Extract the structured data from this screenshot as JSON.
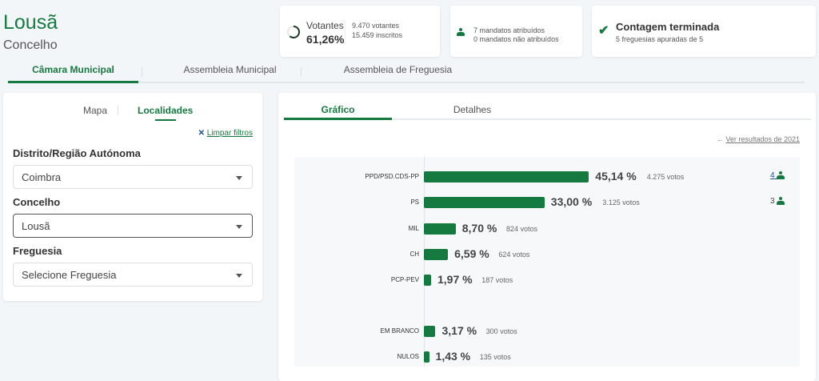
{
  "header": {
    "title": "Lousã",
    "subtitle": "Concelho"
  },
  "stats": {
    "votantes_label": "Votantes",
    "votantes_pct": "61,26%",
    "votantes_progress": 61.26,
    "votantes": "9.470 votantes",
    "inscritos": "15.459 inscritos",
    "mandatos_atribuidos": "7 mandatos atribuídos",
    "mandatos_nao_atribuidos": "0 mandatos não atribuídos",
    "contagem_title": "Contagem terminada",
    "contagem_sub": "5 freguesias apuradas de 5"
  },
  "tabs": [
    {
      "label": "Câmara Municipal",
      "active": true
    },
    {
      "label": "Assembleia Municipal"
    },
    {
      "label": "Assembleia de Freguesia"
    }
  ],
  "filters": {
    "tabs": [
      {
        "label": "Mapa"
      },
      {
        "label": "Localidades",
        "active": true
      }
    ],
    "clear": "Limpar filtros",
    "distrito_label": "Distrito/Região Autónoma",
    "distrito_value": "Coimbra",
    "concelho_label": "Concelho",
    "concelho_value": "Lousã",
    "freguesia_label": "Freguesia",
    "freguesia_placeholder": "Selecione Freguesia"
  },
  "results": {
    "tabs": [
      {
        "label": "Gráfico",
        "active": true
      },
      {
        "label": "Detalhes"
      }
    ],
    "previous_link": "Ver resultados de 2021"
  },
  "colors": {
    "accent": "#157a3f"
  },
  "chart_data": {
    "type": "bar",
    "orientation": "horizontal",
    "categories": [
      "PPD/PSD.CDS-PP",
      "PS",
      "MIL",
      "CH",
      "PCP-PEV",
      "EM BRANCO",
      "NULOS"
    ],
    "values": [
      45.14,
      33.0,
      8.7,
      6.59,
      1.97,
      3.17,
      1.43
    ],
    "pct_labels": [
      "45,14 %",
      "33,00 %",
      "8,70 %",
      "6,59 %",
      "1,97 %",
      "3,17 %",
      "1,43 %"
    ],
    "vote_labels": [
      "4.275 votos",
      "3.125 votos",
      "824 votos",
      "624 votos",
      "187 votos",
      "300 votos",
      "135 votos"
    ],
    "mandates": [
      "4",
      "3",
      null,
      null,
      null,
      null,
      null
    ]
  }
}
